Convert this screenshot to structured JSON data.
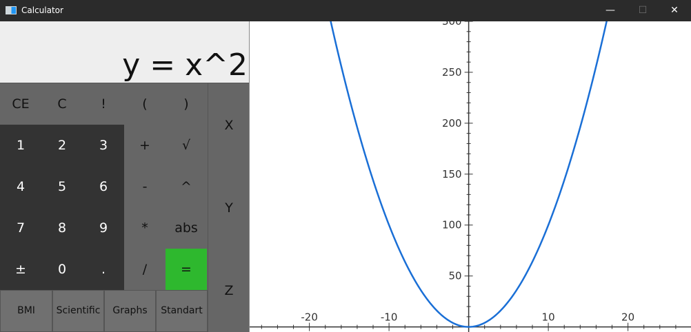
{
  "window": {
    "title": "Calculator",
    "minimize": "—",
    "maximize": "☐",
    "close": "✕"
  },
  "display": {
    "expression": "y = x^2"
  },
  "keypad": {
    "rows": [
      [
        "CE",
        "C",
        "!",
        "(",
        ")"
      ],
      [
        "1",
        "2",
        "3",
        "+",
        "√"
      ],
      [
        "4",
        "5",
        "6",
        "-",
        "^"
      ],
      [
        "7",
        "8",
        "9",
        "*",
        "abs"
      ],
      [
        "±",
        "0",
        ".",
        "/",
        "="
      ]
    ]
  },
  "variables": [
    "X",
    "Y",
    "Z"
  ],
  "modes": [
    "BMI",
    "Scientific",
    "Graphs",
    "Standart"
  ],
  "graph": {
    "x_ticks": [
      "-20",
      "-10",
      "10",
      "20"
    ],
    "y_ticks": [
      "50",
      "100",
      "150",
      "200",
      "250",
      "300"
    ]
  },
  "chart_data": {
    "type": "line",
    "title": "",
    "xlabel": "",
    "ylabel": "",
    "xlim": [
      -27.5,
      28
    ],
    "ylim": [
      -5,
      300
    ],
    "series": [
      {
        "x": [
          -17.5,
          -15,
          -12.5,
          -10,
          -7.5,
          -5,
          -2.5,
          0,
          2.5,
          5,
          7.5,
          10,
          12.5,
          15,
          17.5
        ],
        "y": [
          306.25,
          225,
          156.25,
          100,
          56.25,
          25,
          6.25,
          0,
          6.25,
          25,
          56.25,
          100,
          156.25,
          225,
          306.25
        ]
      }
    ],
    "grid": false,
    "colors": {
      "line": "#1a6fd6",
      "axis": "#333333"
    }
  }
}
